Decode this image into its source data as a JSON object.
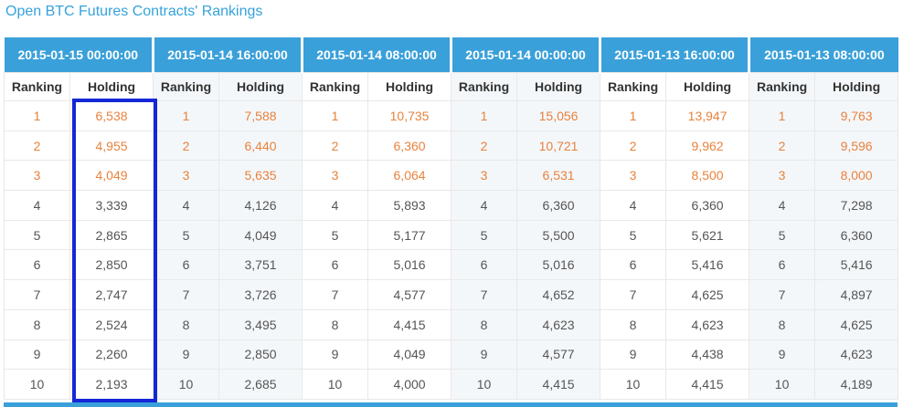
{
  "title": "Open BTC Futures Contracts' Rankings",
  "subheaders": {
    "ranking_label": "Ranking",
    "holding_label": "Holding"
  },
  "colors": {
    "header_bg": "#3aa0da",
    "title_text": "#35a3dc",
    "top3_text": "#e8823c",
    "body_text": "#555555",
    "stripe_bg": "#f4f7fa",
    "highlight_border": "#1527d6",
    "grid_border": "#e8e8e8"
  },
  "highlight": {
    "group_index": 0,
    "column": "Holding"
  },
  "groups": [
    {
      "datetime": "2015-01-15 00:00:00",
      "highlighted": true,
      "rows": [
        {
          "ranking": "1",
          "holding": "6,538"
        },
        {
          "ranking": "2",
          "holding": "4,955"
        },
        {
          "ranking": "3",
          "holding": "4,049"
        },
        {
          "ranking": "4",
          "holding": "3,339"
        },
        {
          "ranking": "5",
          "holding": "2,865"
        },
        {
          "ranking": "6",
          "holding": "2,850"
        },
        {
          "ranking": "7",
          "holding": "2,747"
        },
        {
          "ranking": "8",
          "holding": "2,524"
        },
        {
          "ranking": "9",
          "holding": "2,260"
        },
        {
          "ranking": "10",
          "holding": "2,193"
        }
      ]
    },
    {
      "datetime": "2015-01-14 16:00:00",
      "highlighted": false,
      "rows": [
        {
          "ranking": "1",
          "holding": "7,588"
        },
        {
          "ranking": "2",
          "holding": "6,440"
        },
        {
          "ranking": "3",
          "holding": "5,635"
        },
        {
          "ranking": "4",
          "holding": "4,126"
        },
        {
          "ranking": "5",
          "holding": "4,049"
        },
        {
          "ranking": "6",
          "holding": "3,751"
        },
        {
          "ranking": "7",
          "holding": "3,726"
        },
        {
          "ranking": "8",
          "holding": "3,495"
        },
        {
          "ranking": "9",
          "holding": "2,850"
        },
        {
          "ranking": "10",
          "holding": "2,685"
        }
      ]
    },
    {
      "datetime": "2015-01-14 08:00:00",
      "highlighted": false,
      "rows": [
        {
          "ranking": "1",
          "holding": "10,735"
        },
        {
          "ranking": "2",
          "holding": "6,360"
        },
        {
          "ranking": "3",
          "holding": "6,064"
        },
        {
          "ranking": "4",
          "holding": "5,893"
        },
        {
          "ranking": "5",
          "holding": "5,177"
        },
        {
          "ranking": "6",
          "holding": "5,016"
        },
        {
          "ranking": "7",
          "holding": "4,577"
        },
        {
          "ranking": "8",
          "holding": "4,415"
        },
        {
          "ranking": "9",
          "holding": "4,049"
        },
        {
          "ranking": "10",
          "holding": "4,000"
        }
      ]
    },
    {
      "datetime": "2015-01-14 00:00:00",
      "highlighted": false,
      "rows": [
        {
          "ranking": "1",
          "holding": "15,056"
        },
        {
          "ranking": "2",
          "holding": "10,721"
        },
        {
          "ranking": "3",
          "holding": "6,531"
        },
        {
          "ranking": "4",
          "holding": "6,360"
        },
        {
          "ranking": "5",
          "holding": "5,500"
        },
        {
          "ranking": "6",
          "holding": "5,016"
        },
        {
          "ranking": "7",
          "holding": "4,652"
        },
        {
          "ranking": "8",
          "holding": "4,623"
        },
        {
          "ranking": "9",
          "holding": "4,577"
        },
        {
          "ranking": "10",
          "holding": "4,415"
        }
      ]
    },
    {
      "datetime": "2015-01-13 16:00:00",
      "highlighted": false,
      "rows": [
        {
          "ranking": "1",
          "holding": "13,947"
        },
        {
          "ranking": "2",
          "holding": "9,962"
        },
        {
          "ranking": "3",
          "holding": "8,500"
        },
        {
          "ranking": "4",
          "holding": "6,360"
        },
        {
          "ranking": "5",
          "holding": "5,621"
        },
        {
          "ranking": "6",
          "holding": "5,416"
        },
        {
          "ranking": "7",
          "holding": "4,625"
        },
        {
          "ranking": "8",
          "holding": "4,623"
        },
        {
          "ranking": "9",
          "holding": "4,438"
        },
        {
          "ranking": "10",
          "holding": "4,415"
        }
      ]
    },
    {
      "datetime": "2015-01-13 08:00:00",
      "highlighted": false,
      "rows": [
        {
          "ranking": "1",
          "holding": "9,763"
        },
        {
          "ranking": "2",
          "holding": "9,596"
        },
        {
          "ranking": "3",
          "holding": "8,000"
        },
        {
          "ranking": "4",
          "holding": "7,298"
        },
        {
          "ranking": "5",
          "holding": "6,360"
        },
        {
          "ranking": "6",
          "holding": "5,416"
        },
        {
          "ranking": "7",
          "holding": "4,897"
        },
        {
          "ranking": "8",
          "holding": "4,625"
        },
        {
          "ranking": "9",
          "holding": "4,623"
        },
        {
          "ranking": "10",
          "holding": "4,189"
        }
      ]
    }
  ]
}
